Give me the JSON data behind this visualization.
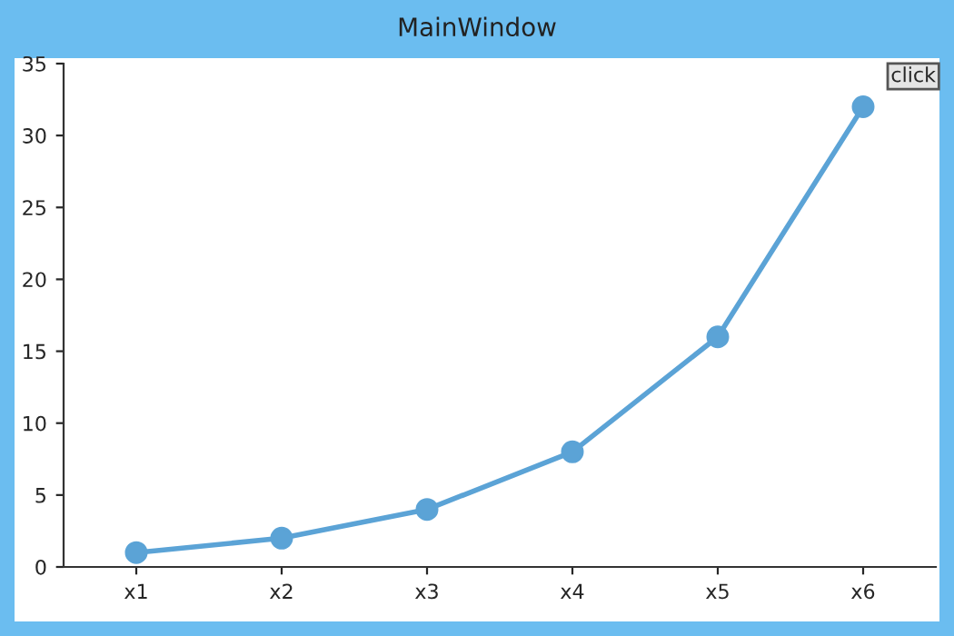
{
  "chart_data": {
    "type": "line",
    "title": "MainWindow",
    "annotations": [
      "click"
    ],
    "categories": [
      "x1",
      "x2",
      "x3",
      "x4",
      "x5",
      "x6"
    ],
    "series": [
      {
        "color": "#5ba3d6",
        "values": [
          1,
          2,
          4,
          8,
          16,
          32
        ]
      }
    ],
    "ylim": [
      0,
      35
    ],
    "yticks": [
      0,
      5,
      10,
      15,
      20,
      25,
      30,
      35
    ],
    "grid": false,
    "marker": "circle",
    "line_style": "solid"
  }
}
